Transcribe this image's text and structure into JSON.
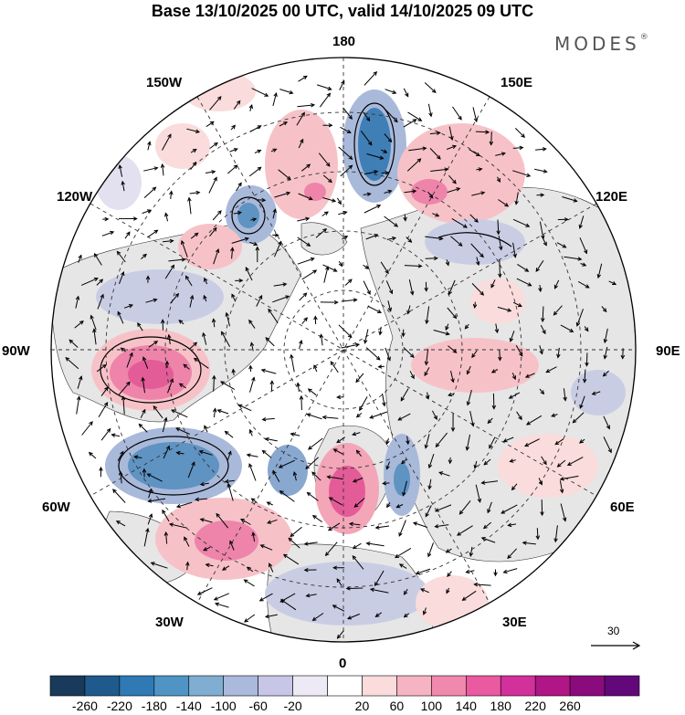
{
  "header": {
    "title": "Base 13/10/2025 00 UTC, valid 14/10/2025 09 UTC",
    "brand": "MODES",
    "brand_mark": "®"
  },
  "map": {
    "projection": "north-polar-stereographic",
    "longitude_labels": {
      "top": "180",
      "top_left": "150W",
      "top_right": "150E",
      "upper_left": "120W",
      "upper_right": "120E",
      "left": "90W",
      "right": "90E",
      "lower_left": "60W",
      "lower_right": "60E",
      "bottom_left": "30W",
      "bottom_right": "30E",
      "bottom": "0"
    },
    "vector_reference": "30"
  },
  "colors": {
    "land": "#e6e6e6",
    "ocean": "#ffffff",
    "blue_shades": [
      "#e3e1f0",
      "#c9cde4",
      "#a9b9da",
      "#88a8d0",
      "#5f93c2",
      "#3f7fb6",
      "#2a6aa3"
    ],
    "pink_shades": [
      "#fadcdc",
      "#f6c2c8",
      "#f3a6b8",
      "#ee84aa",
      "#e35c98"
    ]
  },
  "colorbar": {
    "ticks": [
      "-260",
      "-220",
      "-180",
      "-140",
      "-100",
      "-60",
      "-20",
      "20",
      "60",
      "100",
      "140",
      "180",
      "220",
      "260"
    ],
    "colors": [
      "#1a3a5c",
      "#1f5a8c",
      "#2f7ab5",
      "#4f94c4",
      "#7faed2",
      "#aab9dc",
      "#c8c6e6",
      "#eeeaf5",
      "#ffffff",
      "#fadcdc",
      "#f6b3c2",
      "#f089ad",
      "#e95aa0",
      "#d2309a",
      "#b01686",
      "#8a0b7c",
      "#63087b"
    ]
  }
}
